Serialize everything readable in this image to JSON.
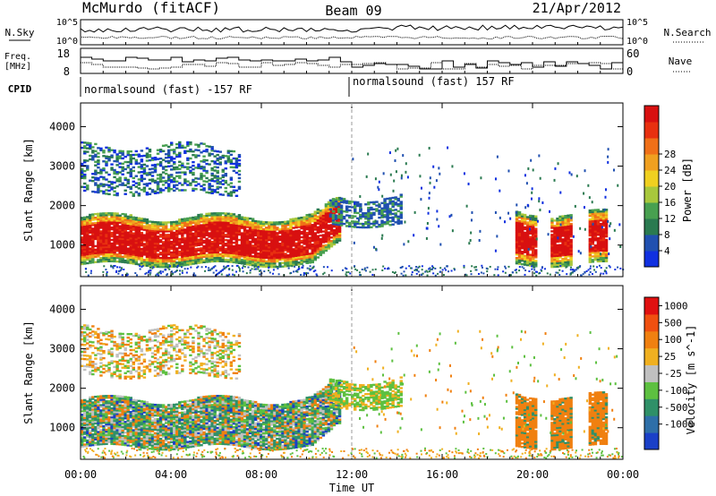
{
  "header": {
    "station": "McMurdo (fitACF)",
    "beam": "Beam 09",
    "date": "21/Apr/2012"
  },
  "top_panels": {
    "nsky_label": "N.Sky",
    "nsearch_label": "N.Search",
    "nsky_ticks": [
      "10^5",
      "10^0"
    ],
    "nsearch_ticks": [
      "10^5",
      "10^0"
    ],
    "freq_label_line1": "Freq.",
    "freq_label_line2": "[MHz]",
    "freq_ticks": [
      "18",
      "8"
    ],
    "nave_label": "Nave",
    "nave_ticks": [
      "60",
      "0"
    ],
    "cpid_label": "CPID",
    "cpid_segments": [
      "normalsound (fast) -157 RF",
      "normalsound (fast) 157 RF"
    ]
  },
  "chart_data": [
    {
      "type": "heatmap",
      "title": "",
      "xlabel": "Time UT",
      "ylabel": "Slant Range [km]",
      "xlim": [
        "00:00",
        "24:00"
      ],
      "x_ticks": [
        "00:00",
        "04:00",
        "08:00",
        "12:00",
        "16:00",
        "20:00",
        "00:00"
      ],
      "ylim": [
        200,
        4600
      ],
      "y_ticks": [
        1000,
        2000,
        3000,
        4000
      ],
      "colorbar": {
        "label": "Power [dB]",
        "ticks": [
          4,
          8,
          12,
          16,
          20,
          24,
          28
        ],
        "colors": [
          "#1030e0",
          "#2050b0",
          "#2a7a50",
          "#48a050",
          "#a8c83c",
          "#f0d020",
          "#f0a020",
          "#f07018",
          "#e83010",
          "#d81010"
        ]
      },
      "echo_regions": [
        {
          "t_start": 0.0,
          "t_end": 11.5,
          "range_start": 500,
          "range_end": 1700,
          "level": "28"
        },
        {
          "t_start": 11.0,
          "t_end": 14.2,
          "range_start": 1500,
          "range_end": 2200,
          "level": "8"
        },
        {
          "t_start": 0.0,
          "t_end": 7.0,
          "range_start": 2300,
          "range_end": 3500,
          "level": "8-12"
        },
        {
          "t_start": 19.0,
          "t_end": 24.0,
          "range_start": 500,
          "range_end": 1800,
          "level": "24-28"
        }
      ]
    },
    {
      "type": "heatmap",
      "title": "",
      "xlabel": "Time UT",
      "ylabel": "Slant Range [km]",
      "xlim": [
        "00:00",
        "24:00"
      ],
      "x_ticks": [
        "00:00",
        "04:00",
        "08:00",
        "12:00",
        "16:00",
        "20:00",
        "00:00"
      ],
      "ylim": [
        200,
        4600
      ],
      "y_ticks": [
        1000,
        2000,
        3000,
        4000
      ],
      "colorbar": {
        "label": "Velocity [m s^-1]",
        "ticks": [
          "1000",
          "500",
          "100",
          "25",
          "-25",
          "-100",
          "-500",
          "-1000"
        ],
        "colors": [
          "#1a40c8",
          "#2e6fa8",
          "#2f9068",
          "#5dc040",
          "#c0c0c0",
          "#f0b020",
          "#f08010",
          "#f05010",
          "#e01010"
        ]
      },
      "echo_regions": [
        {
          "t_start": 0.0,
          "t_end": 11.5,
          "range_start": 500,
          "range_end": 1700,
          "level": "100 to -100"
        },
        {
          "t_start": 11.0,
          "t_end": 14.2,
          "range_start": 1500,
          "range_end": 2200,
          "level": "100"
        },
        {
          "t_start": 0.0,
          "t_end": 7.0,
          "range_start": 2300,
          "range_end": 3500,
          "level": "25 to -100"
        },
        {
          "t_start": 19.0,
          "t_end": 24.0,
          "range_start": 500,
          "range_end": 1800,
          "level": "-100"
        }
      ]
    }
  ]
}
